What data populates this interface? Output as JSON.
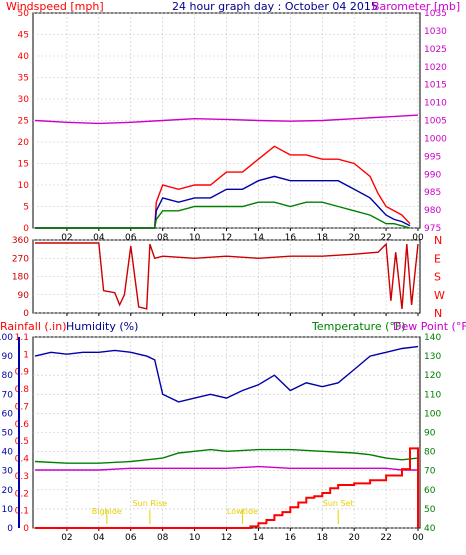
{
  "colors": {
    "wind": "#ff0000",
    "gust": "#ff0000",
    "avg_wind": "#0000aa",
    "min_wind": "#008000",
    "baro": "#cc00cc",
    "direction": "#cc0000",
    "rain": "#ff0000",
    "humidity": "#0000aa",
    "temperature": "#008000",
    "dewpoint": "#cc00cc",
    "grid": "#c8c8c8",
    "frame": "#000000",
    "annot": "#e6d000"
  },
  "header": {
    "windspeed": "Windspeed [mph]",
    "title": "24 hour graph day : October 04 2015",
    "barometer": "Barometer [mb]"
  },
  "labels": {
    "rainfall": "Rainfall (.in)",
    "humidity": "Humidity (%)",
    "temperature": "Temperature (°F)",
    "dewpoint": "Dew Point (°F)"
  },
  "chart_data": [
    {
      "type": "line",
      "id": "wind",
      "x_ticks": [
        "02",
        "04",
        "06",
        "08",
        "10",
        "12",
        "14",
        "16",
        "18",
        "20",
        "22",
        "00"
      ],
      "y_left_ticks": [
        "0",
        "5",
        "10",
        "15",
        "20",
        "25",
        "30",
        "35",
        "40",
        "45",
        "50"
      ],
      "y_right_ticks": [
        "975",
        "980",
        "985",
        "990",
        "995",
        "1000",
        "1005",
        "1010",
        "1015",
        "1020",
        "1025",
        "1030",
        "1035"
      ],
      "ylim_left": [
        0,
        50
      ],
      "ylim_right": [
        975,
        1035
      ],
      "series": [
        {
          "name": "Windspeed",
          "color_key": "wind",
          "x": [
            0,
            7.5,
            7.6,
            8,
            9,
            10,
            11,
            12,
            13,
            14,
            15,
            16,
            17,
            18,
            19,
            20,
            21,
            21.5,
            22,
            22.5,
            23,
            23.5
          ],
          "y": [
            0,
            0,
            6,
            10,
            9,
            10,
            10,
            13,
            13,
            16,
            19,
            17,
            17,
            16,
            16,
            15,
            12,
            8,
            5,
            4,
            3,
            1
          ]
        },
        {
          "name": "Avg Wind",
          "color_key": "avg_wind",
          "x": [
            0,
            7.5,
            7.6,
            8,
            9,
            10,
            11,
            12,
            13,
            14,
            15,
            16,
            17,
            18,
            19,
            20,
            21,
            21.5,
            22,
            22.5,
            23,
            23.5
          ],
          "y": [
            0,
            0,
            4,
            7,
            6,
            7,
            7,
            9,
            9,
            11,
            12,
            11,
            11,
            11,
            11,
            9,
            7,
            5,
            3,
            2,
            1.5,
            0.5
          ]
        },
        {
          "name": "Min Wind",
          "color_key": "min_wind",
          "x": [
            0,
            7.5,
            7.6,
            8,
            9,
            10,
            11,
            12,
            13,
            14,
            15,
            16,
            17,
            18,
            19,
            20,
            21,
            21.5,
            22,
            22.5,
            23,
            23.5
          ],
          "y": [
            0,
            0,
            2,
            4,
            4,
            5,
            5,
            5,
            5,
            6,
            6,
            5,
            6,
            6,
            5,
            4,
            3,
            2,
            1,
            1,
            0.5,
            0
          ]
        },
        {
          "name": "Barometer",
          "color_key": "baro",
          "x": [
            0,
            2,
            4,
            6,
            8,
            10,
            12,
            14,
            16,
            18,
            20,
            22,
            24
          ],
          "y": [
            1005,
            1004.5,
            1004.2,
            1004.5,
            1005,
            1005.5,
            1005.3,
            1005,
            1004.8,
            1005,
            1005.5,
            1006,
            1006.5
          ]
        }
      ]
    },
    {
      "type": "line",
      "id": "direction",
      "x_ticks": [
        "02",
        "04",
        "06",
        "08",
        "10",
        "12",
        "14",
        "16",
        "18",
        "20",
        "22",
        "00"
      ],
      "y_left_ticks": [
        "0",
        "90",
        "180",
        "270",
        "360"
      ],
      "y_right_ticks": [
        "N",
        "W",
        "S",
        "E",
        "N"
      ],
      "ylim": [
        0,
        360
      ],
      "series": [
        {
          "name": "Direction",
          "color_key": "direction",
          "x": [
            0,
            4,
            4.3,
            5,
            5.3,
            5.6,
            6,
            6.5,
            7,
            7.2,
            7.5,
            8,
            10,
            12,
            14,
            16,
            18,
            20,
            21.5,
            22,
            22.3,
            22.6,
            23,
            23.3,
            23.6,
            24
          ],
          "y": [
            345,
            345,
            110,
            100,
            40,
            90,
            330,
            30,
            20,
            340,
            270,
            280,
            270,
            280,
            270,
            280,
            280,
            290,
            300,
            340,
            60,
            300,
            20,
            340,
            40,
            340
          ]
        }
      ]
    },
    {
      "type": "line",
      "id": "humidity_temp",
      "x_ticks": [
        "02",
        "04",
        "06",
        "08",
        "10",
        "12",
        "14",
        "16",
        "18",
        "20",
        "22",
        "00"
      ],
      "rain_ticks": [
        "0",
        "0.1",
        "0.2",
        "0.3",
        "0.4",
        "0.5",
        "0.6",
        "0.7",
        "0.8",
        "0.9",
        "1",
        "1.1"
      ],
      "humidity_ticks": [
        "0",
        "10",
        "20",
        "30",
        "40",
        "50",
        "60",
        "70",
        "80",
        "90",
        "100"
      ],
      "temp_ticks": [
        "40",
        "50",
        "60",
        "70",
        "80",
        "90",
        "100",
        "110",
        "120",
        "130",
        "140"
      ],
      "ylim_rain": [
        0,
        1.2
      ],
      "ylim_humidity": [
        0,
        100
      ],
      "ylim_temp": [
        33,
        145
      ],
      "annotations": [
        {
          "text": "Bighide",
          "x": 4.5
        },
        {
          "text": "Sun Rise",
          "x": 7.2
        },
        {
          "text": "Lowtide",
          "x": 13
        },
        {
          "text": "Sun Set",
          "x": 19
        }
      ],
      "series": [
        {
          "name": "Humidity",
          "color_key": "humidity",
          "x": [
            0,
            1,
            2,
            3,
            4,
            5,
            6,
            7,
            7.5,
            8,
            9,
            10,
            11,
            12,
            13,
            14,
            15,
            16,
            17,
            18,
            19,
            20,
            21,
            22,
            23,
            24
          ],
          "y": [
            90,
            92,
            91,
            92,
            92,
            93,
            92,
            90,
            88,
            70,
            66,
            68,
            70,
            68,
            72,
            75,
            80,
            72,
            76,
            74,
            76,
            83,
            90,
            92,
            94,
            95
          ]
        },
        {
          "name": "Temperature",
          "color_key": "temperature",
          "x": [
            0,
            2,
            4,
            6,
            7,
            8,
            9,
            10,
            11,
            12,
            14,
            16,
            18,
            20,
            21,
            22,
            23,
            24
          ],
          "y": [
            72,
            71,
            71,
            72,
            73,
            74,
            77,
            78,
            79,
            78,
            79,
            79,
            78,
            77,
            76,
            74,
            73,
            74
          ]
        },
        {
          "name": "Dew Point",
          "color_key": "dewpoint",
          "x": [
            0,
            2,
            4,
            6,
            8,
            10,
            12,
            14,
            16,
            18,
            20,
            22,
            23,
            24
          ],
          "y": [
            67,
            67,
            67,
            68,
            68,
            68,
            68,
            69,
            68,
            68,
            68,
            68,
            67,
            67
          ]
        },
        {
          "name": "Rainfall",
          "color_key": "rain",
          "x": [
            0,
            13,
            13.5,
            14,
            14.5,
            15,
            15.5,
            16,
            16.5,
            17,
            17.5,
            18,
            18.5,
            19,
            20,
            21,
            22,
            23,
            23.5,
            24
          ],
          "y": [
            0,
            0,
            0.01,
            0.03,
            0.05,
            0.08,
            0.1,
            0.13,
            0.16,
            0.19,
            0.2,
            0.22,
            0.25,
            0.27,
            0.28,
            0.3,
            0.33,
            0.37,
            0.5,
            0
          ]
        }
      ]
    }
  ]
}
